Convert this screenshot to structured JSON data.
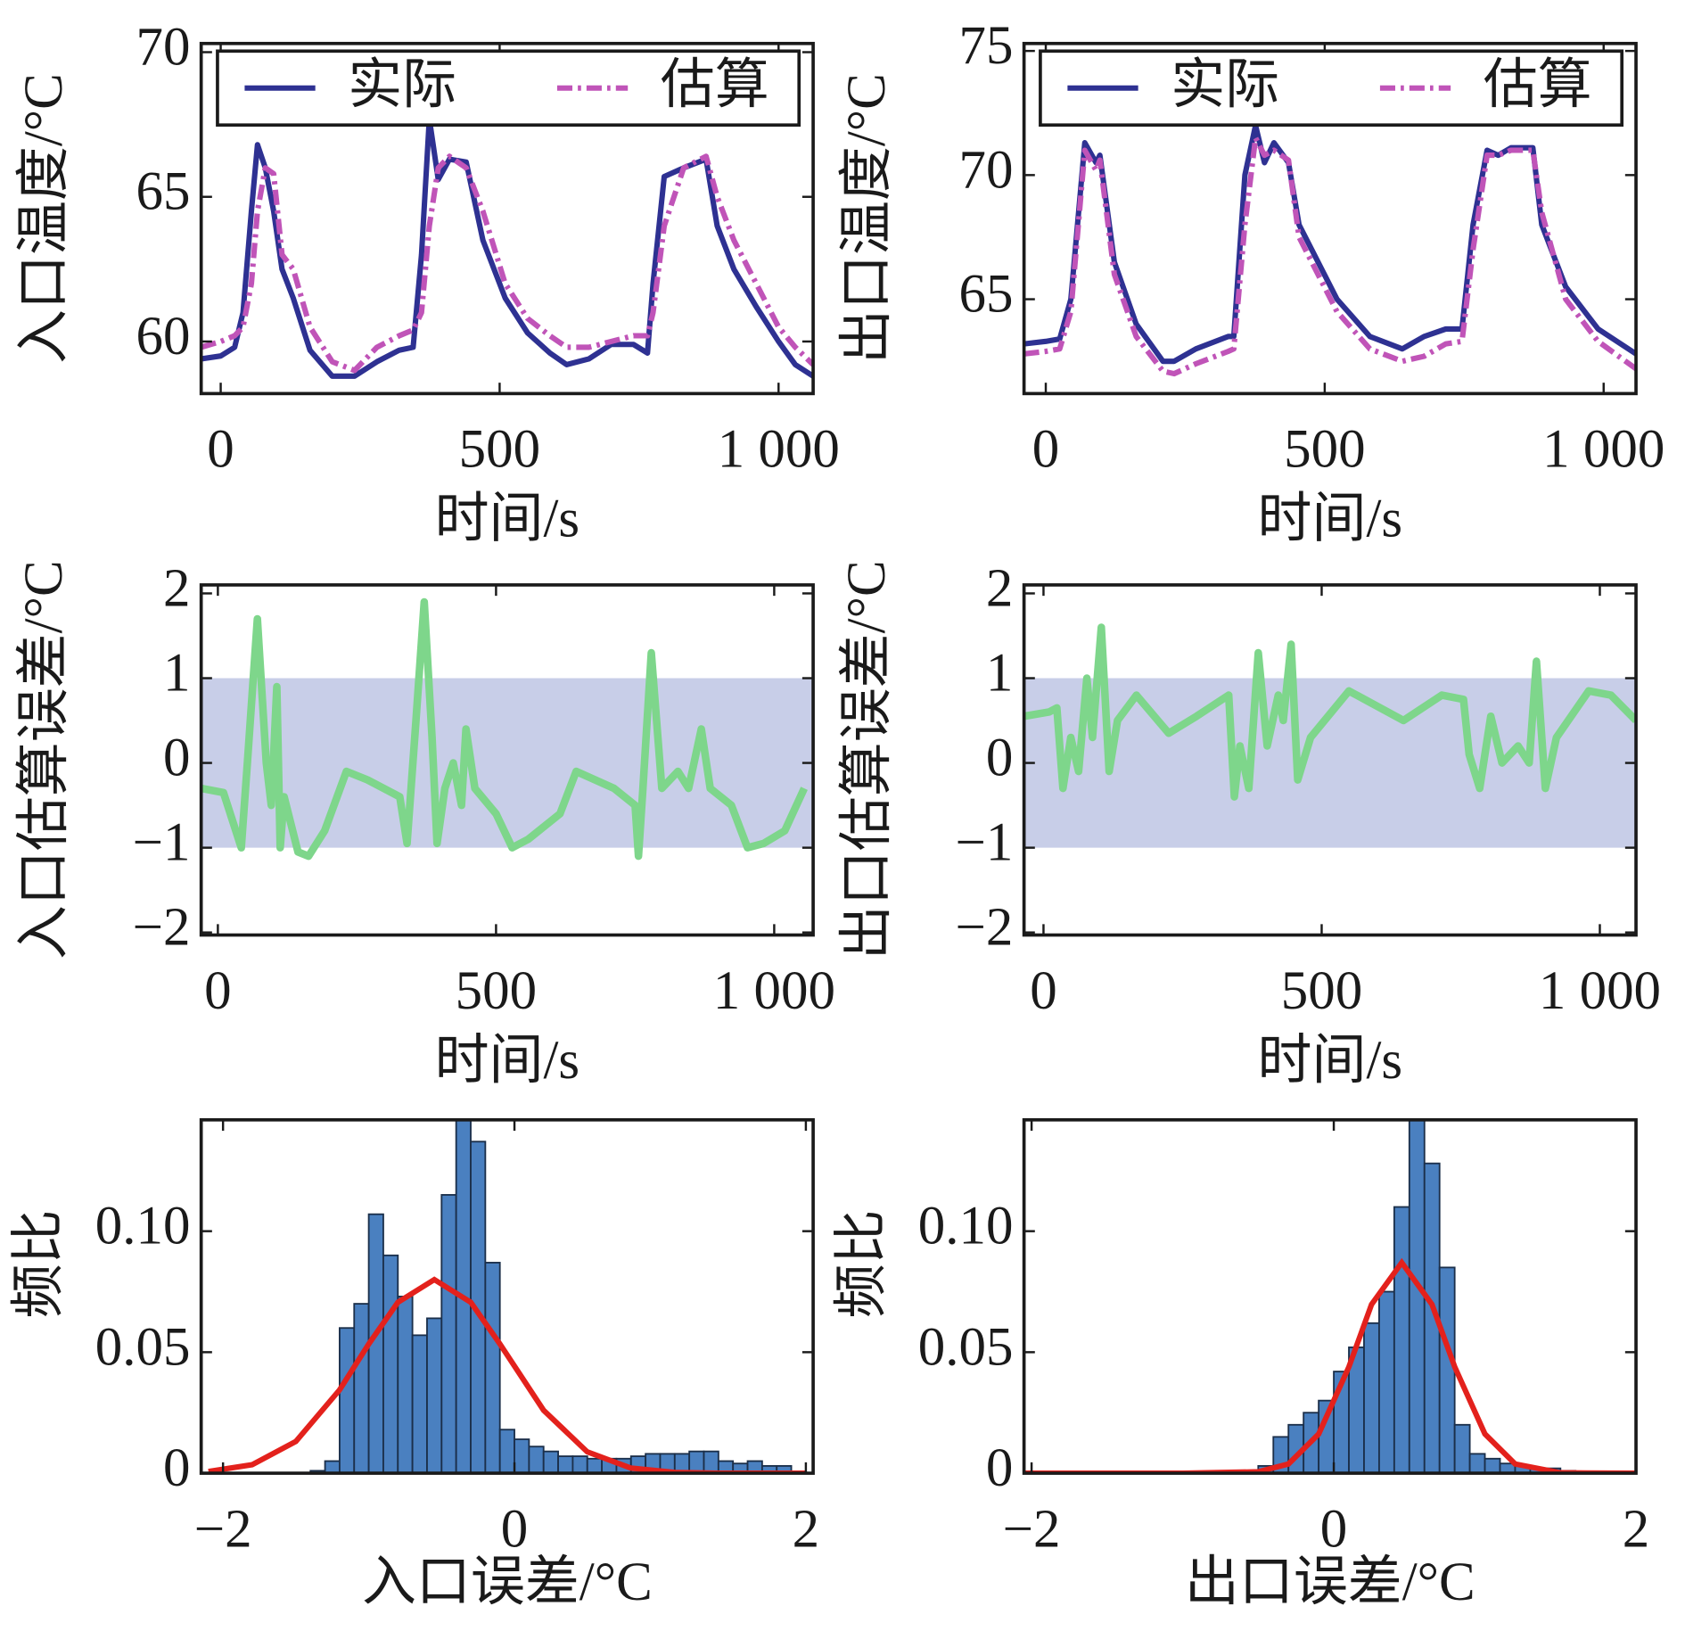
{
  "chart_data": [
    {
      "type": "line",
      "xlabel": "时间/s",
      "ylabel": "入口温度/°C",
      "x": [
        -35,
        0,
        25,
        40,
        55,
        66,
        80,
        95,
        110,
        130,
        160,
        200,
        240,
        280,
        320,
        345,
        360,
        374,
        390,
        410,
        440,
        470,
        510,
        550,
        590,
        620,
        660,
        700,
        740,
        765,
        775,
        795,
        830,
        870,
        890,
        920,
        960,
        1000,
        1030,
        1062
      ],
      "series": [
        {
          "name": "实际",
          "color": "#2e3192",
          "values": [
            59.4,
            59.5,
            59.8,
            61,
            64.5,
            66.8,
            66,
            64.5,
            62.5,
            61.5,
            59.7,
            58.8,
            58.8,
            59.3,
            59.7,
            59.8,
            63,
            67.7,
            65.6,
            66.3,
            66.2,
            63.5,
            61.5,
            60.3,
            59.6,
            59.2,
            59.4,
            59.9,
            59.9,
            59.6,
            62,
            65.7,
            66,
            66.3,
            64,
            62.5,
            61.2,
            60,
            59.2,
            58.8
          ]
        },
        {
          "name": "估算",
          "color": "#c054b8",
          "values": [
            59.8,
            60,
            60.2,
            60.5,
            62,
            64.5,
            66,
            65.8,
            63,
            62.5,
            60.5,
            59.3,
            59,
            59.8,
            60.2,
            60.4,
            61,
            64,
            66,
            66.4,
            66,
            64.5,
            62,
            60.8,
            60.2,
            59.8,
            59.8,
            60,
            60.2,
            60.2,
            61,
            64,
            66,
            66.4,
            65,
            63.5,
            62,
            60.5,
            59.8,
            59.2
          ]
        }
      ],
      "xlim": [
        -35,
        1062
      ],
      "xticks": [
        0,
        500,
        {
          "value": 1000,
          "label": "1 000"
        }
      ],
      "ylim": [
        58.2,
        70.3
      ],
      "yticks": [
        60,
        65,
        70
      ],
      "legend": "top"
    },
    {
      "type": "line",
      "xlabel": "时间/s",
      "ylabel": "出口温度/°C",
      "x": [
        -39,
        0,
        25,
        45,
        70,
        90,
        97,
        123,
        162,
        210,
        230,
        269,
        327,
        337,
        357,
        376,
        392,
        409,
        435,
        454,
        522,
        581,
        639,
        678,
        717,
        746,
        766,
        791,
        811,
        834,
        873,
        889,
        932,
        990,
        1058
      ],
      "series": [
        {
          "name": "实际",
          "color": "#2e3192",
          "values": [
            63.2,
            63.3,
            63.4,
            65,
            71.3,
            70.5,
            70.8,
            66.5,
            64,
            62.5,
            62.5,
            63,
            63.5,
            63.5,
            70,
            72,
            70.5,
            71.3,
            70.5,
            68,
            65,
            63.5,
            63,
            63.5,
            63.8,
            63.8,
            68,
            71,
            70.8,
            71.1,
            71.1,
            68,
            65.5,
            63.8,
            62.8
          ]
        },
        {
          "name": "估算",
          "color": "#c054b8",
          "values": [
            62.8,
            62.9,
            63.0,
            64.5,
            71,
            70.2,
            70.6,
            66,
            63.5,
            62.1,
            62.0,
            62.4,
            62.9,
            63.0,
            68,
            71.5,
            70.8,
            71,
            70.6,
            67.5,
            64.5,
            63,
            62.5,
            62.7,
            63.2,
            63.3,
            67,
            70.8,
            70.8,
            71,
            71,
            68.5,
            65,
            63.3,
            62.2
          ]
        }
      ],
      "xlim": [
        -39,
        1058
      ],
      "xticks": [
        0,
        500,
        {
          "value": 1000,
          "label": "1 000"
        }
      ],
      "ylim": [
        61.2,
        75.3
      ],
      "yticks": [
        65,
        70,
        75
      ],
      "legend": "top"
    },
    {
      "type": "line",
      "xlabel": "时间/s",
      "ylabel": "入口估算误差/°C",
      "x": [
        -30,
        10,
        42,
        53,
        71,
        87,
        96,
        106,
        112,
        119,
        144,
        163,
        192,
        231,
        269,
        327,
        340,
        356,
        371,
        385,
        394,
        408,
        423,
        438,
        446,
        462,
        500,
        529,
        558,
        615,
        644,
        712,
        750,
        756,
        764,
        779,
        798,
        827,
        846,
        869,
        885,
        923,
        952,
        981,
        1019,
        1054
      ],
      "series": [
        {
          "color": "#7ed68b",
          "values": [
            -0.3,
            -0.35,
            -1.0,
            0,
            1.7,
            0,
            -0.5,
            0.9,
            -1.0,
            -0.4,
            -1.05,
            -1.1,
            -0.8,
            -0.1,
            -0.2,
            -0.4,
            -0.95,
            0.5,
            1.9,
            0.3,
            -0.95,
            -0.3,
            0,
            -0.5,
            0.4,
            -0.3,
            -0.6,
            -1.0,
            -0.9,
            -0.6,
            -0.1,
            -0.3,
            -0.5,
            -1.1,
            -0.3,
            1.3,
            -0.3,
            -0.1,
            -0.3,
            0.4,
            -0.3,
            -0.5,
            -1.0,
            -0.95,
            -0.8,
            -0.3
          ]
        }
      ],
      "band": [
        -1,
        1
      ],
      "band_color": "#c8cee8",
      "xlim": [
        -30,
        1070
      ],
      "xticks": [
        0,
        500,
        {
          "value": 1000,
          "label": "1 000"
        }
      ],
      "ylim": [
        -2.03,
        2.1
      ],
      "yticks": [
        {
          "value": -2,
          "label": "−2"
        },
        {
          "value": -1,
          "label": "−1"
        },
        0,
        1,
        2
      ]
    },
    {
      "type": "line",
      "xlabel": "时间/s",
      "ylabel": "出口估算误差/°C",
      "x": [
        -35,
        10,
        24,
        35,
        49,
        63,
        78,
        88,
        104,
        118,
        133,
        167,
        225,
        275,
        333,
        343,
        353,
        369,
        386,
        402,
        422,
        431,
        445,
        457,
        480,
        549,
        647,
        716,
        755,
        765,
        784,
        804,
        824,
        853,
        873,
        886,
        902,
        922,
        980,
        1020,
        1065
      ],
      "series": [
        {
          "color": "#7ed68b",
          "values": [
            0.55,
            0.6,
            0.65,
            -0.3,
            0.3,
            -0.1,
            1.0,
            0.3,
            1.6,
            -0.1,
            0.5,
            0.8,
            0.35,
            0.55,
            0.8,
            -0.4,
            0.2,
            -0.3,
            1.3,
            0.2,
            0.8,
            0.5,
            1.4,
            -0.2,
            0.3,
            0.85,
            0.5,
            0.8,
            0.75,
            0.1,
            -0.3,
            0.55,
            0.0,
            0.2,
            0.0,
            1.2,
            -0.3,
            0.3,
            0.85,
            0.8,
            0.5
          ]
        }
      ],
      "band": [
        -1,
        1
      ],
      "band_color": "#c8cee8",
      "xlim": [
        -35,
        1065
      ],
      "xticks": [
        0,
        500,
        {
          "value": 1000,
          "label": "1 000"
        }
      ],
      "ylim": [
        -2.03,
        2.1
      ],
      "yticks": [
        {
          "value": -2,
          "label": "−2"
        },
        {
          "value": -1,
          "label": "−1"
        },
        0,
        1,
        2
      ]
    },
    {
      "type": "histogram",
      "xlabel": "入口误差/°C",
      "ylabel": "频比",
      "bins": [
        -1.4,
        -1.3,
        -1.2,
        -1.1,
        -1,
        -0.9,
        -0.8,
        -0.7,
        -0.6,
        -0.5,
        -0.4,
        -0.3,
        -0.2,
        -0.1,
        0,
        0.1,
        0.2,
        0.3,
        0.4,
        0.5,
        0.6,
        0.7,
        0.8,
        0.9,
        1,
        1.1,
        1.2,
        1.3,
        1.4,
        1.5,
        1.6,
        1.7,
        1.8,
        1.9
      ],
      "values": [
        0.001,
        0.005,
        0.06,
        0.07,
        0.107,
        0.09,
        0.073,
        0.057,
        0.064,
        0.115,
        0.146,
        0.137,
        0.087,
        0.018,
        0.014,
        0.011,
        0.009,
        0.007,
        0.007,
        0.006,
        0.006,
        0.006,
        0.007,
        0.008,
        0.008,
        0.008,
        0.009,
        0.009,
        0.005,
        0.004,
        0.005,
        0.003,
        0.003
      ],
      "color": "#4a80c0",
      "fit": {
        "color": "#e3211c",
        "x": [
          -2.1,
          -1.8,
          -1.5,
          -1.2,
          -1,
          -0.8,
          -0.55,
          -0.3,
          -0.1,
          0.2,
          0.5,
          0.8,
          1.1,
          1.4,
          2.0
        ],
        "values": [
          0.0007,
          0.0035,
          0.0131,
          0.0344,
          0.0534,
          0.0706,
          0.08,
          0.0706,
          0.0534,
          0.026,
          0.0088,
          0.0021,
          0.0003,
          0,
          0
        ]
      },
      "xlim": [
        -2.15,
        2.05
      ],
      "xticks": [
        {
          "value": -2,
          "label": "−2"
        },
        0,
        2
      ],
      "ylim": [
        0,
        0.146
      ],
      "yticks": [
        0,
        0.05,
        {
          "value": 0.1,
          "label": "0.10"
        }
      ]
    },
    {
      "type": "histogram",
      "xlabel": "出口误差/°C",
      "ylabel": "频比",
      "bins": [
        -0.6,
        -0.5,
        -0.4,
        -0.3,
        -0.2,
        -0.1,
        0,
        0.1,
        0.2,
        0.3,
        0.4,
        0.5,
        0.6,
        0.7,
        0.8,
        0.9,
        1,
        1.1,
        1.2,
        1.3,
        1.4,
        1.5,
        1.6
      ],
      "values": [
        0.001,
        0.003,
        0.015,
        0.02,
        0.025,
        0.03,
        0.042,
        0.052,
        0.062,
        0.075,
        0.11,
        0.146,
        0.128,
        0.085,
        0.02,
        0.008,
        0.006,
        0.004,
        0.003,
        0.002,
        0.002,
        0.001
      ],
      "color": "#4a80c0",
      "fit": {
        "color": "#e3211c",
        "x": [
          -2.05,
          -1,
          -0.5,
          -0.3,
          -0.1,
          0.1,
          0.25,
          0.45,
          0.65,
          0.8,
          1.0,
          1.2,
          1.5,
          2.0
        ],
        "values": [
          0,
          0,
          0.0006,
          0.0038,
          0.0162,
          0.044,
          0.0697,
          0.087,
          0.0697,
          0.044,
          0.0162,
          0.0038,
          0.0002,
          0
        ]
      },
      "xlim": [
        -2.05,
        2
      ],
      "xticks": [
        {
          "value": -2,
          "label": "−2"
        },
        0,
        2
      ],
      "ylim": [
        0,
        0.146
      ],
      "yticks": [
        0,
        0.05,
        {
          "value": 0.1,
          "label": "0.10"
        }
      ]
    }
  ]
}
